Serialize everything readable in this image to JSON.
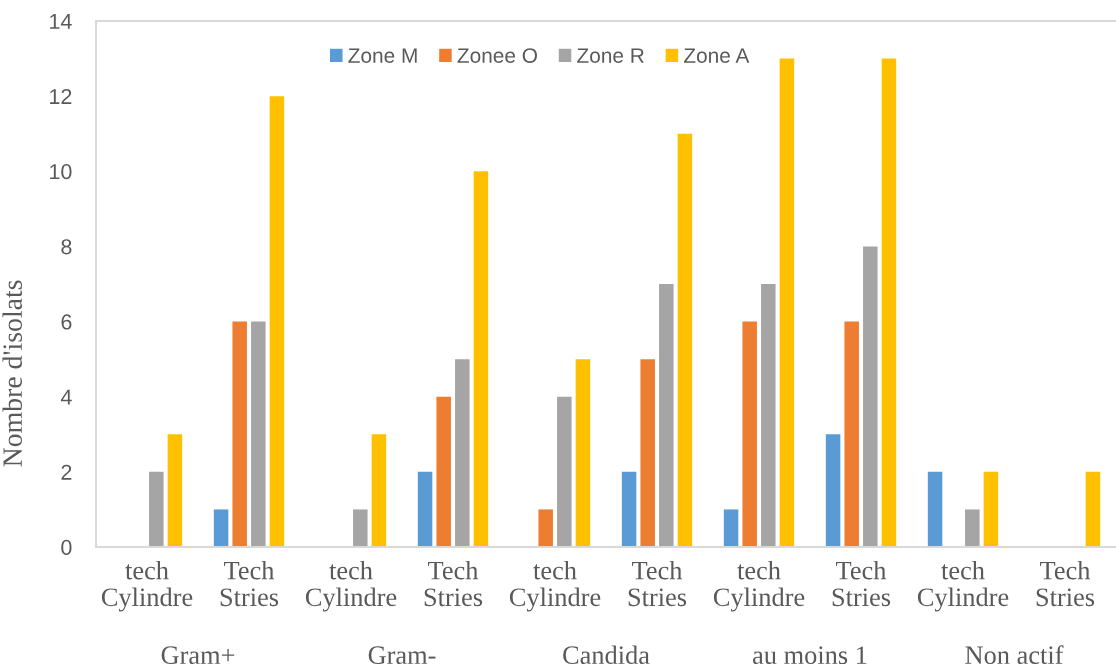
{
  "chart_data": {
    "type": "bar",
    "ylabel": "Nombre d'isolats",
    "categories": [
      "tech Cylindre",
      "Tech Stries",
      "tech Cylindre",
      "Tech Stries",
      "tech Cylindre",
      "Tech Stries",
      "tech Cylindre",
      "Tech Stries",
      "tech Cylindre",
      "Tech Stries"
    ],
    "annotations": [
      "Gram+",
      "Gram-",
      "Candida",
      "au moins 1",
      "Non actif"
    ],
    "series": [
      {
        "name": "Zone M",
        "color": "#5b9bd5",
        "values": [
          0,
          1,
          0,
          2,
          0,
          2,
          1,
          3,
          2,
          0
        ]
      },
      {
        "name": "Zonee O",
        "color": "#ed7d31",
        "values": [
          0,
          6,
          0,
          4,
          1,
          5,
          6,
          6,
          0,
          0
        ]
      },
      {
        "name": "Zone R",
        "color": "#a5a5a5",
        "values": [
          2,
          6,
          1,
          5,
          4,
          7,
          7,
          8,
          1,
          0
        ]
      },
      {
        "name": "Zone A",
        "color": "#ffc000",
        "values": [
          3,
          12,
          3,
          10,
          5,
          11,
          13,
          13,
          2,
          2
        ]
      }
    ],
    "ylim": [
      0,
      14
    ],
    "yticks": [
      0,
      2,
      4,
      6,
      8,
      10,
      12,
      14
    ],
    "legend": "top"
  }
}
